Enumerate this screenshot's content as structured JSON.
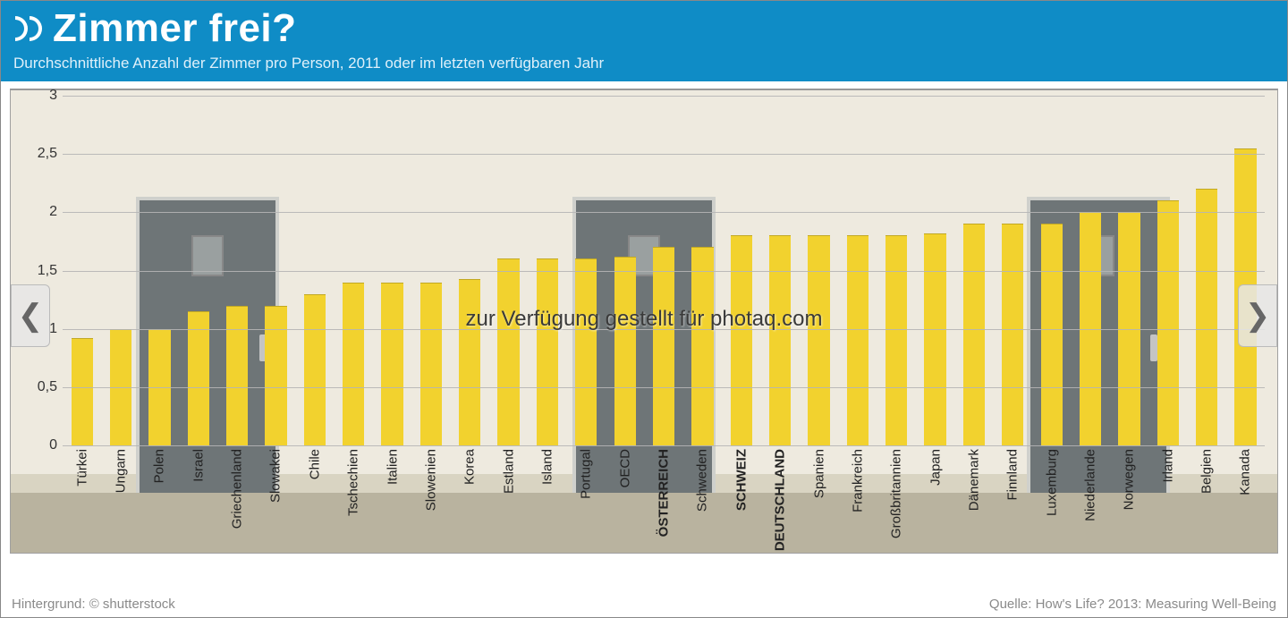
{
  "header": {
    "title": "Zimmer frei?",
    "subtitle": "Durchschnittliche Anzahl der Zimmer pro Person, 2011 oder im letzten verfügbaren Jahr",
    "accent_color": "#0f8cc6",
    "title_fontsize": 44,
    "subtitle_fontsize": 17
  },
  "watermark": "zur Verfügung gestellt für photaq.com",
  "footer": {
    "left": "Hintergrund: © shutterstock",
    "right": "Quelle: How's Life? 2013: Measuring Well-Being"
  },
  "chart": {
    "type": "bar",
    "ylim": [
      0,
      3
    ],
    "ytick_step": 0.5,
    "ytick_labels": [
      "0",
      "0,5",
      "1",
      "1,5",
      "2",
      "2,5",
      "3"
    ],
    "bar_color": "#f2d22e",
    "grid_color": "#b5b5b5",
    "background_colors": {
      "wall": "#eeeadf",
      "floor": "#b9b39f",
      "door": "#6e7577"
    },
    "label_fontsize": 15,
    "tick_fontsize": 16,
    "bar_width_ratio": 0.56,
    "bold_countries": [
      "ÖSTERREICH",
      "SCHWEIZ",
      "DEUTSCHLAND"
    ],
    "categories": [
      "Türkei",
      "Ungarn",
      "Polen",
      "Israel",
      "Griechenland",
      "Slowakei",
      "Chile",
      "Tschechien",
      "Italien",
      "Slowenien",
      "Korea",
      "Estland",
      "Island",
      "Portugal",
      "OECD",
      "ÖSTERREICH",
      "Schweden",
      "SCHWEIZ",
      "DEUTSCHLAND",
      "Spanien",
      "Frankreich",
      "Großbritannien",
      "Japan",
      "Dänemark",
      "Finnland",
      "Luxemburg",
      "Niederlande",
      "Norwegen",
      "Irland",
      "Belgien",
      "Kanada"
    ],
    "values": [
      0.92,
      1.0,
      1.0,
      1.15,
      1.2,
      1.2,
      1.3,
      1.4,
      1.4,
      1.4,
      1.43,
      1.6,
      1.6,
      1.6,
      1.62,
      1.7,
      1.7,
      1.8,
      1.8,
      1.8,
      1.8,
      1.8,
      1.82,
      1.9,
      1.9,
      1.9,
      2.0,
      2.0,
      2.1,
      2.2,
      2.55
    ]
  }
}
